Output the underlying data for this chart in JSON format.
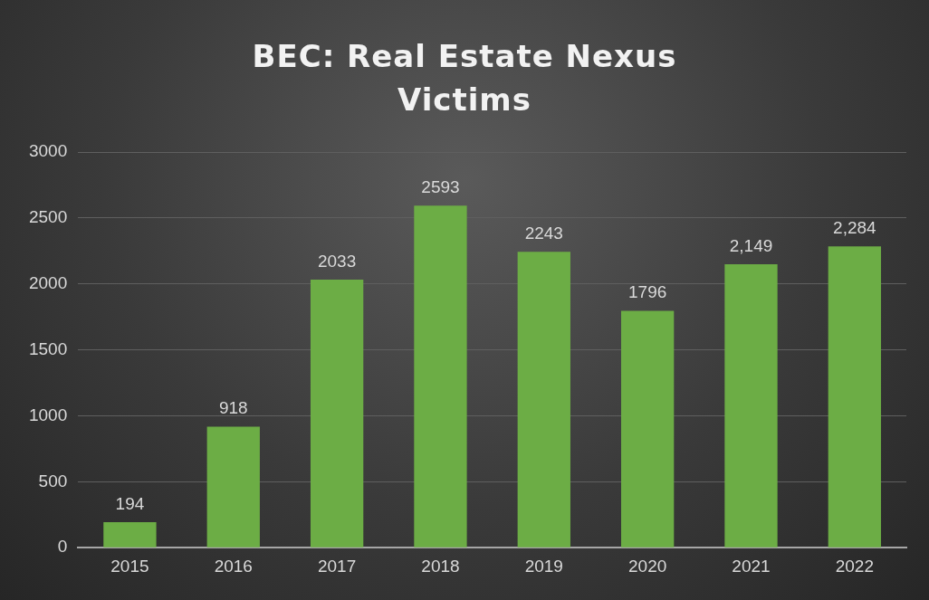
{
  "chart_data": {
    "type": "bar",
    "title": "BEC: Real Estate Nexus Victims",
    "categories": [
      "2015",
      "2016",
      "2017",
      "2018",
      "2019",
      "2020",
      "2021",
      "2022"
    ],
    "values": [
      194,
      918,
      2033,
      2593,
      2243,
      1796,
      2149,
      2284
    ],
    "value_labels": [
      "194",
      "918",
      "2033",
      "2593",
      "2243",
      "1796",
      "2,149",
      "2,284"
    ],
    "color": "#6cad45",
    "ylim": [
      0,
      3000
    ],
    "yticks": [
      0,
      500,
      1000,
      1500,
      2000,
      2500,
      3000
    ],
    "grid": "y"
  }
}
